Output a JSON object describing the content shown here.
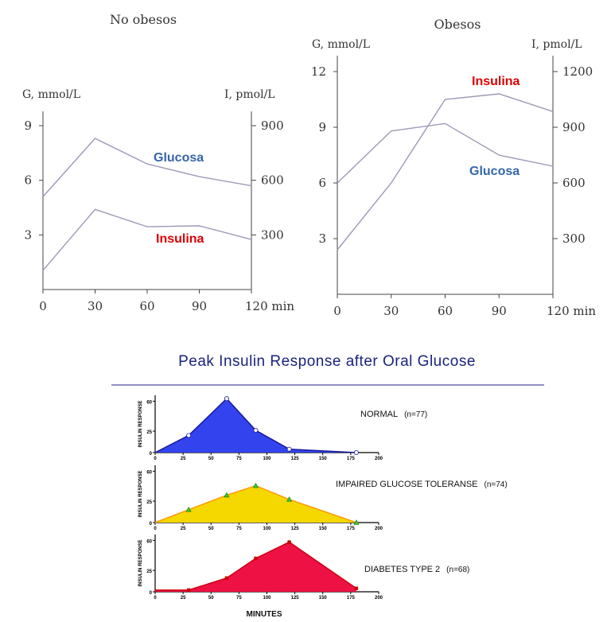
{
  "chart_data": [
    {
      "type": "line",
      "title": "No obesos",
      "xlabel": "min",
      "ylabel_left": "G, mmol/L",
      "ylabel_right": "I, pmol/L",
      "x": [
        0,
        30,
        60,
        90,
        120
      ],
      "x_ticks": [
        "0",
        "30",
        "60",
        "90",
        "120 min"
      ],
      "y_left_ticks": [
        "3",
        "6",
        "9"
      ],
      "y_right_ticks": [
        "300",
        "600",
        "900"
      ],
      "ylim_left": [
        0,
        9
      ],
      "ylim_right": [
        0,
        900
      ],
      "series": [
        {
          "name": "Glucosa",
          "axis": "left",
          "values": [
            5.1,
            8.3,
            6.9,
            6.2,
            5.7
          ],
          "color": "#3366aa"
        },
        {
          "name": "Insulina",
          "axis": "right",
          "values": [
            105,
            440,
            345,
            350,
            275
          ],
          "color": "#dd0000"
        }
      ]
    },
    {
      "type": "line",
      "title": "Obesos",
      "xlabel": "min",
      "ylabel_left": "G, mmol/L",
      "ylabel_right": "I, pmol/L",
      "x": [
        0,
        30,
        60,
        90,
        120
      ],
      "x_ticks": [
        "0",
        "30",
        "60",
        "90",
        "120 min"
      ],
      "y_left_ticks": [
        "3",
        "6",
        "9",
        "12"
      ],
      "y_right_ticks": [
        "300",
        "600",
        "900",
        "1200"
      ],
      "ylim_left": [
        0,
        12
      ],
      "ylim_right": [
        0,
        1200
      ],
      "series": [
        {
          "name": "Glucosa",
          "axis": "left",
          "values": [
            6.0,
            8.8,
            9.2,
            7.5,
            6.9
          ],
          "color": "#3366aa"
        },
        {
          "name": "Insulina",
          "axis": "right",
          "values": [
            240,
            600,
            1050,
            1080,
            985
          ],
          "color": "#dd0000"
        }
      ]
    },
    {
      "type": "area",
      "title": "Peak Insulin Response after Oral Glucose",
      "xlabel": "MINUTES",
      "ylabel": "INSULIN RESPONSE",
      "xlim": [
        0,
        200
      ],
      "ylim": [
        0,
        65
      ],
      "x_ticks": [
        "0",
        "25",
        "50",
        "75",
        "100",
        "125",
        "150",
        "175",
        "200"
      ],
      "y_ticks": [
        "0",
        "25",
        "60"
      ],
      "panels": [
        {
          "name": "NORMAL",
          "n": "(n=77)",
          "color": "#3344ee",
          "marker": "circle",
          "x": [
            0,
            30,
            64,
            90,
            120,
            180
          ],
          "values": [
            0,
            20,
            63,
            26,
            4,
            0
          ]
        },
        {
          "name": "IMPAIRED GLUCOSE TOLERANSE",
          "n": "(n=74)",
          "color": "#f5d800",
          "marker": "triangle",
          "x": [
            0,
            30,
            64,
            90,
            120,
            180
          ],
          "values": [
            0,
            15,
            32,
            43,
            27,
            0
          ]
        },
        {
          "name": "DIABETES TYPE 2",
          "n": "(n=68)",
          "color": "#ee1144",
          "marker": "square",
          "x": [
            0,
            30,
            64,
            90,
            120,
            180
          ],
          "values": [
            2,
            2,
            16,
            39,
            58,
            4
          ]
        }
      ]
    }
  ]
}
